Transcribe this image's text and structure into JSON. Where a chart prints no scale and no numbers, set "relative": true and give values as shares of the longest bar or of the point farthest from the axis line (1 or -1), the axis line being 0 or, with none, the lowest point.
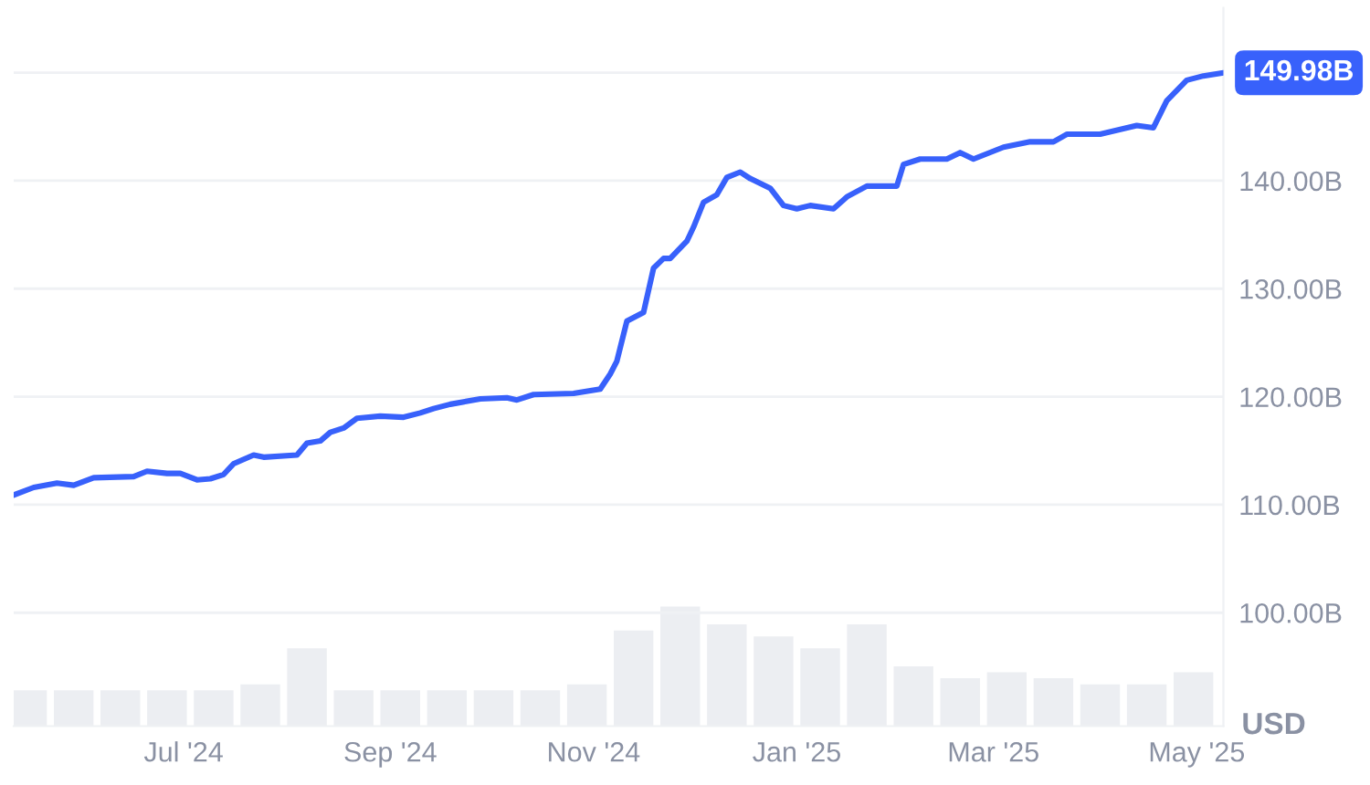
{
  "chart_data": [
    {
      "type": "line",
      "ylabel": "USD",
      "grid": "y",
      "xlim": [
        "2024-05-11",
        "2025-05-09"
      ],
      "ylim": [
        89.5,
        156
      ],
      "xticks": [
        {
          "value": "2024-07-01",
          "label": "Jul '24"
        },
        {
          "value": "2024-09-01",
          "label": "Sep '24"
        },
        {
          "value": "2024-11-01",
          "label": "Nov '24"
        },
        {
          "value": "2025-01-01",
          "label": "Jan '25"
        },
        {
          "value": "2025-03-01",
          "label": "Mar '25"
        },
        {
          "value": "2025-05-01",
          "label": "May '25"
        }
      ],
      "yticks": [
        {
          "value": 100,
          "label": "100.00B"
        },
        {
          "value": 110,
          "label": "110.00B"
        },
        {
          "value": 120,
          "label": "120.00B"
        },
        {
          "value": 130,
          "label": "130.00B"
        },
        {
          "value": 140,
          "label": "140.00B"
        },
        {
          "value": 150,
          "label": null
        }
      ],
      "annotations": [
        {
          "text": "149.98B",
          "x": "2025-05-09",
          "y": 149.98
        }
      ],
      "series": [
        {
          "color": "#3861fb",
          "x": [
            "2024-05-11",
            "2024-05-17",
            "2024-05-24",
            "2024-05-29",
            "2024-06-04",
            "2024-06-16",
            "2024-06-20",
            "2024-06-26",
            "2024-06-30",
            "2024-07-05",
            "2024-07-09",
            "2024-07-13",
            "2024-07-16",
            "2024-07-22",
            "2024-07-25",
            "2024-08-04",
            "2024-08-07",
            "2024-08-11",
            "2024-08-14",
            "2024-08-18",
            "2024-08-22",
            "2024-08-29",
            "2024-09-05",
            "2024-09-10",
            "2024-09-14",
            "2024-09-19",
            "2024-09-28",
            "2024-10-06",
            "2024-10-09",
            "2024-10-14",
            "2024-10-26",
            "2024-11-03",
            "2024-11-06",
            "2024-11-08",
            "2024-11-11",
            "2024-11-16",
            "2024-11-19",
            "2024-11-22",
            "2024-11-24",
            "2024-11-29",
            "2024-12-01",
            "2024-12-04",
            "2024-12-08",
            "2024-12-11",
            "2024-12-15",
            "2024-12-18",
            "2024-12-24",
            "2024-12-28",
            "2025-01-01",
            "2025-01-05",
            "2025-01-12",
            "2025-01-16",
            "2025-01-22",
            "2025-01-31",
            "2025-02-02",
            "2025-02-07",
            "2025-02-15",
            "2025-02-19",
            "2025-02-23",
            "2025-03-04",
            "2025-03-12",
            "2025-03-19",
            "2025-03-23",
            "2025-04-02",
            "2025-04-13",
            "2025-04-18",
            "2025-04-22",
            "2025-04-28",
            "2025-05-03",
            "2025-05-09"
          ],
          "values": [
            110.9,
            111.6,
            112.0,
            111.8,
            112.5,
            112.6,
            113.1,
            112.9,
            112.9,
            112.3,
            112.4,
            112.8,
            113.8,
            114.6,
            114.4,
            114.6,
            115.7,
            115.9,
            116.7,
            117.1,
            118.0,
            118.2,
            118.1,
            118.5,
            118.9,
            119.3,
            119.8,
            119.9,
            119.7,
            120.2,
            120.3,
            120.7,
            122.1,
            123.3,
            127.0,
            127.8,
            131.9,
            132.8,
            132.8,
            134.4,
            135.7,
            138.0,
            138.7,
            140.3,
            140.8,
            140.2,
            139.3,
            137.7,
            137.4,
            137.7,
            137.4,
            138.5,
            139.5,
            139.5,
            141.5,
            142.0,
            142.0,
            142.6,
            142.0,
            143.1,
            143.6,
            143.6,
            144.3,
            144.3,
            145.1,
            144.9,
            147.4,
            149.3,
            149.7,
            149.98
          ]
        }
      ]
    },
    {
      "type": "bar",
      "relative": true,
      "color": "#eceef2",
      "xlim": [
        "2024-05-11",
        "2025-05-09"
      ],
      "x": [
        "2024-05-15",
        "2024-05-29",
        "2024-06-12",
        "2024-06-26",
        "2024-07-10",
        "2024-07-24",
        "2024-08-07",
        "2024-08-21",
        "2024-09-04",
        "2024-09-18",
        "2024-10-02",
        "2024-10-16",
        "2024-10-30",
        "2024-11-13",
        "2024-11-27",
        "2024-12-11",
        "2024-12-25",
        "2025-01-08",
        "2025-01-22",
        "2025-02-05",
        "2025-02-19",
        "2025-03-05",
        "2025-03-19",
        "2025-04-02",
        "2025-04-16",
        "2025-04-30"
      ],
      "values": [
        0.3,
        0.3,
        0.3,
        0.3,
        0.3,
        0.35,
        0.65,
        0.3,
        0.3,
        0.3,
        0.3,
        0.3,
        0.35,
        0.8,
        1.0,
        0.85,
        0.75,
        0.65,
        0.85,
        0.5,
        0.4,
        0.45,
        0.4,
        0.35,
        0.35,
        0.45
      ]
    }
  ]
}
